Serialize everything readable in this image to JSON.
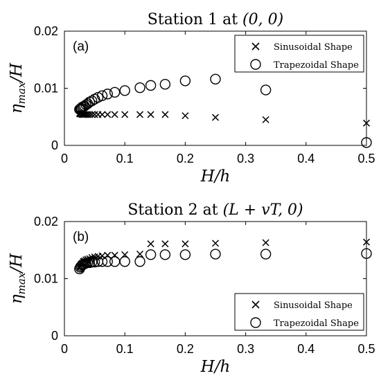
{
  "chart_data": [
    {
      "type": "scatter",
      "panel_label": "(b)",
      "title": "Station 2 at (L + vT, 0)",
      "xlabel": "H/h",
      "ylabel": "η_max/H",
      "xlim": [
        0,
        0.5
      ],
      "ylim": [
        0,
        0.02
      ],
      "xticks": [
        0,
        0.1,
        0.2,
        0.3,
        0.4,
        0.5
      ],
      "xtick_labels": [
        "0",
        "0.1",
        "0.2",
        "0.3",
        "0.4",
        "0.5"
      ],
      "yticks": [
        0,
        0.01,
        0.02
      ],
      "ytick_labels": [
        "0",
        "0.01",
        "0.02"
      ],
      "grid": false,
      "legend": "bottom-right",
      "series": [
        {
          "name": "Sinusoidal Shape",
          "marker": "x",
          "x": [
            0.025,
            0.0263,
            0.0278,
            0.0294,
            0.0313,
            0.0333,
            0.0357,
            0.0385,
            0.0417,
            0.0455,
            0.05,
            0.0556,
            0.0625,
            0.0714,
            0.0833,
            0.1,
            0.125,
            0.1429,
            0.1667,
            0.2,
            0.25,
            0.3333,
            0.5
          ],
          "y": [
            0.0119,
            0.0122,
            0.0125,
            0.0127,
            0.013,
            0.0131,
            0.0133,
            0.0134,
            0.0135,
            0.0137,
            0.0138,
            0.0139,
            0.014,
            0.0141,
            0.0141,
            0.0142,
            0.0143,
            0.0161,
            0.0161,
            0.0161,
            0.0162,
            0.0163,
            0.0164
          ]
        },
        {
          "name": "Trapezoidal Shape",
          "marker": "o",
          "x": [
            0.025,
            0.0263,
            0.0278,
            0.0294,
            0.0313,
            0.0333,
            0.0357,
            0.0385,
            0.0417,
            0.0455,
            0.05,
            0.0556,
            0.0625,
            0.0714,
            0.0833,
            0.1,
            0.125,
            0.1429,
            0.1667,
            0.2,
            0.25,
            0.3333,
            0.5
          ],
          "y": [
            0.0117,
            0.012,
            0.0122,
            0.0124,
            0.0125,
            0.0126,
            0.0127,
            0.0128,
            0.0128,
            0.0129,
            0.0129,
            0.013,
            0.013,
            0.013,
            0.013,
            0.013,
            0.013,
            0.0142,
            0.0142,
            0.0142,
            0.0143,
            0.0143,
            0.0144
          ]
        }
      ]
    }
  ],
  "top_panel": {
    "type": "scatter",
    "panel_label": "(a)",
    "title": "Station 1 at (0, 0)",
    "xlabel": "H/h",
    "ylabel": "η_max/H",
    "xlim": [
      0,
      0.5
    ],
    "ylim": [
      0,
      0.02
    ],
    "xticks": [
      0,
      0.1,
      0.2,
      0.3,
      0.4,
      0.5
    ],
    "xtick_labels": [
      "0",
      "0.1",
      "0.2",
      "0.3",
      "0.4",
      "0.5"
    ],
    "yticks": [
      0,
      0.01,
      0.02
    ],
    "ytick_labels": [
      "0",
      "0.01",
      "0.02"
    ],
    "grid": false,
    "legend": "top-right",
    "series": [
      {
        "name": "Sinusoidal Shape",
        "marker": "x",
        "x": [
          0.025,
          0.0263,
          0.0278,
          0.0294,
          0.0313,
          0.0333,
          0.0357,
          0.0385,
          0.0417,
          0.0455,
          0.05,
          0.0556,
          0.0625,
          0.0714,
          0.0833,
          0.1,
          0.125,
          0.1429,
          0.1667,
          0.2,
          0.25,
          0.3333,
          0.5
        ],
        "y": [
          0.0056,
          0.0055,
          0.0055,
          0.0054,
          0.0054,
          0.0054,
          0.0054,
          0.0054,
          0.0054,
          0.0054,
          0.0054,
          0.0054,
          0.0054,
          0.0054,
          0.0054,
          0.0054,
          0.0054,
          0.0054,
          0.0054,
          0.0052,
          0.0049,
          0.0045,
          0.0039
        ]
      },
      {
        "name": "Trapezoidal Shape",
        "marker": "o",
        "x": [
          0.025,
          0.0263,
          0.0278,
          0.0294,
          0.0313,
          0.0333,
          0.0357,
          0.0385,
          0.0417,
          0.0455,
          0.05,
          0.0556,
          0.0625,
          0.0714,
          0.0833,
          0.1,
          0.125,
          0.1429,
          0.1667,
          0.2,
          0.25,
          0.3333,
          0.5
        ],
        "y": [
          0.0063,
          0.0064,
          0.0065,
          0.0067,
          0.0068,
          0.0069,
          0.0071,
          0.0073,
          0.0076,
          0.0078,
          0.0081,
          0.0084,
          0.0087,
          0.009,
          0.0093,
          0.0096,
          0.0101,
          0.0105,
          0.0107,
          0.0113,
          0.0116,
          0.0097,
          0.0005
        ]
      }
    ]
  },
  "colors": {
    "axes": "#000000",
    "background": "#ffffff",
    "marker": "#000000"
  }
}
